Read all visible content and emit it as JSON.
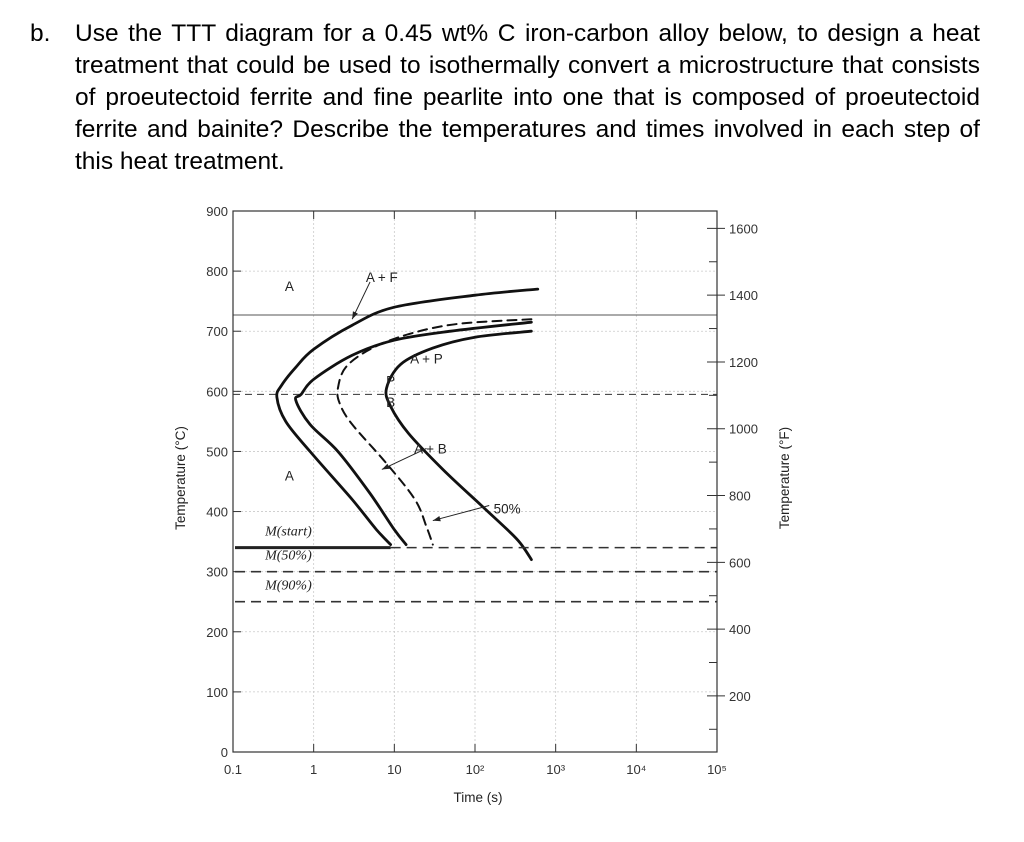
{
  "question": {
    "label": "b.",
    "text": "Use the TTT diagram for a 0.45 wt% C iron-carbon alloy below, to design a heat treatment that could be used to isothermally convert a microstructure that consists of proeutectoid ferrite and fine pearlite into one that is composed of proeutectoid ferrite and bainite? Describe the temperatures and times involved in each step of this heat treatment."
  },
  "chart_data": {
    "type": "line",
    "xlabel": "Time (s)",
    "ylabel": "Temperature (°C)",
    "ylabel_right": "Temperature (°F)",
    "x_scale": "log",
    "xlim": [
      0.1,
      100000
    ],
    "ylim": [
      0,
      900
    ],
    "x_ticks": [
      {
        "value": 0.1,
        "label": "0.1"
      },
      {
        "value": 1,
        "label": "1"
      },
      {
        "value": 10,
        "label": "10"
      },
      {
        "value": 100,
        "label": "10²"
      },
      {
        "value": 1000,
        "label": "10³"
      },
      {
        "value": 10000,
        "label": "10⁴"
      },
      {
        "value": 100000,
        "label": "10⁵"
      }
    ],
    "y_ticks": [
      0,
      100,
      200,
      300,
      400,
      500,
      600,
      700,
      800,
      900
    ],
    "y_right_ticks": [
      {
        "value": 200,
        "label": "200"
      },
      {
        "value": 400,
        "label": "400"
      },
      {
        "value": 600,
        "label": "600"
      },
      {
        "value": 800,
        "label": "800"
      },
      {
        "value": 1000,
        "label": "1000"
      },
      {
        "value": 1200,
        "label": "1200"
      },
      {
        "value": 1400,
        "label": "1400"
      },
      {
        "value": 1600,
        "label": "1600"
      }
    ],
    "series": [
      {
        "id": "ferrite-start",
        "style": "solid",
        "points": [
          [
            600,
            770
          ],
          [
            100,
            760
          ],
          [
            10,
            740
          ],
          [
            3,
            710
          ],
          [
            1,
            670
          ],
          [
            0.6,
            640
          ],
          [
            0.4,
            610
          ],
          [
            0.35,
            590
          ],
          [
            0.45,
            550
          ],
          [
            0.9,
            500
          ],
          [
            3,
            420
          ],
          [
            6,
            370
          ],
          [
            9,
            345
          ]
        ]
      },
      {
        "id": "pearlite-start",
        "style": "solid",
        "points": [
          [
            500,
            715
          ],
          [
            50,
            700
          ],
          [
            10,
            685
          ],
          [
            3,
            660
          ],
          [
            1,
            620
          ],
          [
            0.7,
            595
          ],
          [
            0.6,
            585
          ],
          [
            0.9,
            545
          ],
          [
            2,
            500
          ],
          [
            5,
            430
          ],
          [
            10,
            370
          ],
          [
            14,
            345
          ]
        ]
      },
      {
        "id": "half-transformation",
        "style": "dashed",
        "points": [
          [
            500,
            720
          ],
          [
            60,
            712
          ],
          [
            15,
            695
          ],
          [
            5,
            670
          ],
          [
            2.5,
            640
          ],
          [
            2,
            605
          ],
          [
            2.1,
            580
          ],
          [
            3,
            545
          ],
          [
            8,
            480
          ],
          [
            18,
            420
          ],
          [
            25,
            375
          ],
          [
            30,
            345
          ]
        ]
      },
      {
        "id": "transformation-finish",
        "style": "solid",
        "points": [
          [
            500,
            700
          ],
          [
            100,
            690
          ],
          [
            30,
            672
          ],
          [
            12,
            645
          ],
          [
            8,
            605
          ],
          [
            9,
            575
          ],
          [
            15,
            530
          ],
          [
            40,
            470
          ],
          [
            120,
            410
          ],
          [
            300,
            360
          ],
          [
            400,
            340
          ],
          [
            500,
            320
          ]
        ]
      }
    ],
    "isotherms": [
      {
        "label": "M(start)",
        "value": 340,
        "style": "solid"
      },
      {
        "label": "M(50%)",
        "value": 300,
        "style": "dashed"
      },
      {
        "label": "M(90%)",
        "value": 250,
        "style": "dashed"
      }
    ],
    "reference_lines": [
      {
        "value": 727,
        "style": "solid"
      },
      {
        "value": 595,
        "style": "dashed"
      }
    ],
    "region_labels": [
      {
        "text": "A",
        "x": 0.5,
        "y": 775
      },
      {
        "text": "A + F",
        "x": 7,
        "y": 790
      },
      {
        "text": "A + P",
        "x": 25,
        "y": 655
      },
      {
        "text": "P",
        "x": 9,
        "y": 618
      },
      {
        "text": "B",
        "x": 9,
        "y": 582
      },
      {
        "text": "A + B",
        "x": 28,
        "y": 505
      },
      {
        "text": "A",
        "x": 0.5,
        "y": 460
      },
      {
        "text": "50%",
        "x": 250,
        "y": 405
      }
    ],
    "arrows": [
      {
        "from": [
          5,
          782
        ],
        "to": [
          3,
          720
        ]
      },
      {
        "from": [
          25,
          505
        ],
        "to": [
          7,
          470
        ]
      },
      {
        "from": [
          150,
          410
        ],
        "to": [
          30,
          385
        ]
      }
    ]
  }
}
